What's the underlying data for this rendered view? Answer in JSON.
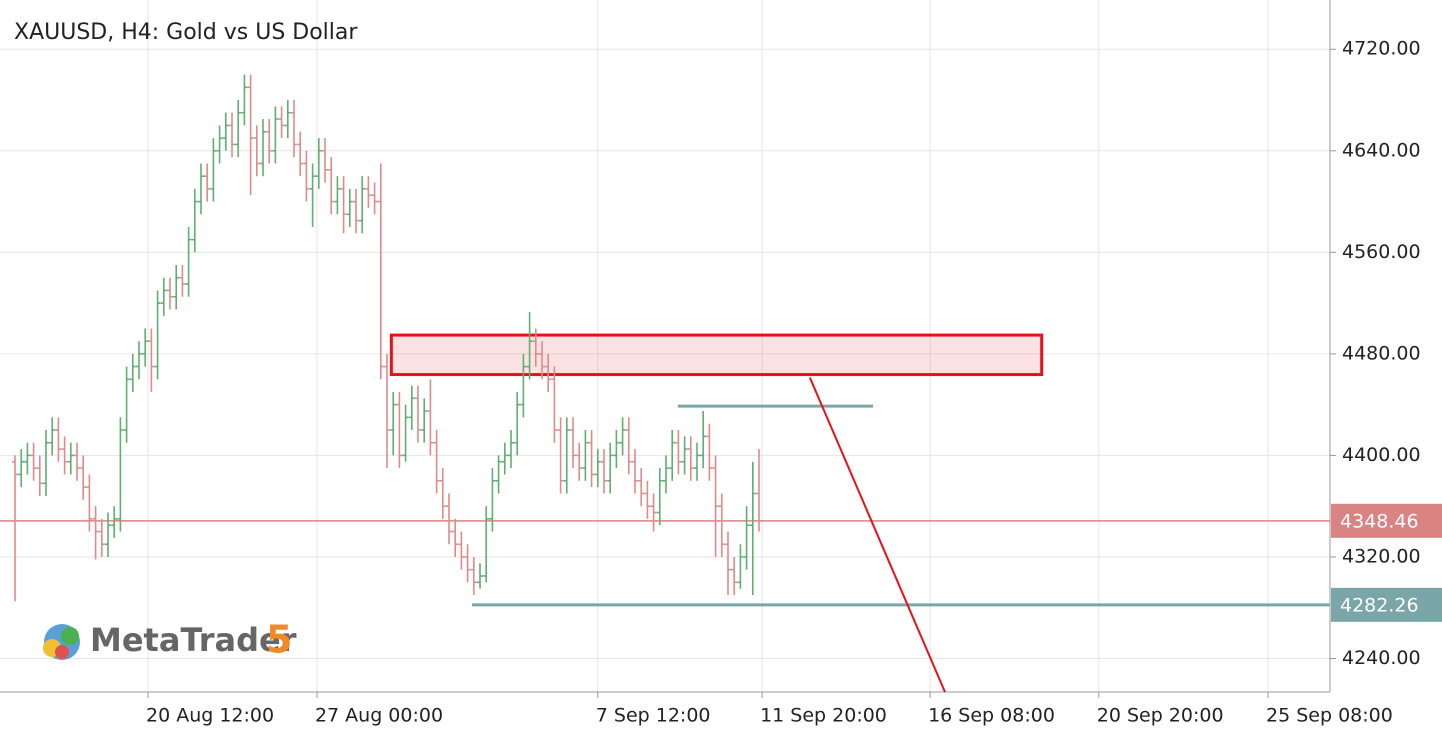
{
  "chart_data": {
    "type": "ohlc",
    "title": "XAUUSD, H4: Gold vs US Dollar",
    "branding": {
      "name": "MetaTrader",
      "version": "5"
    },
    "up_color": "#5fae72",
    "down_color": "#e08a8a",
    "grid": true,
    "xlim": [
      -2.42,
      212.1
    ],
    "ylim": [
      4213.6,
      4758.8
    ],
    "xticks": [
      {
        "value": 21.45,
        "label": "20 Aug 12:00"
      },
      {
        "value": 48.7,
        "label": "27 Aug 00:00"
      },
      {
        "value": 94.0,
        "label": "7 Sep 12:00"
      },
      {
        "value": 120.5,
        "label": "11 Sep 20:00"
      },
      {
        "value": 147.6,
        "label": "16 Sep 08:00"
      },
      {
        "value": 174.8,
        "label": "20 Sep 20:00"
      },
      {
        "value": 202.1,
        "label": "25 Sep 08:00"
      }
    ],
    "yticks": [
      {
        "value": 4240,
        "label": "4240.00"
      },
      {
        "value": 4320,
        "label": "4320.00"
      },
      {
        "value": 4400,
        "label": "4400.00"
      },
      {
        "value": 4480,
        "label": "4480.00"
      },
      {
        "value": 4560,
        "label": "4560.00"
      },
      {
        "value": 4640,
        "label": "4640.00"
      },
      {
        "value": 4720,
        "label": "4720.00"
      }
    ],
    "ohlc": [
      [
        4395,
        4400,
        4285,
        4385
      ],
      [
        4385,
        4405,
        4375,
        4395
      ],
      [
        4395,
        4410,
        4385,
        4400
      ],
      [
        4400,
        4410,
        4380,
        4390
      ],
      [
        4390,
        4400,
        4368,
        4378
      ],
      [
        4378,
        4420,
        4368,
        4410
      ],
      [
        4410,
        4430,
        4400,
        4420
      ],
      [
        4420,
        4430,
        4395,
        4405
      ],
      [
        4405,
        4415,
        4385,
        4395
      ],
      [
        4395,
        4410,
        4385,
        4400
      ],
      [
        4400,
        4410,
        4380,
        4390
      ],
      [
        4390,
        4400,
        4365,
        4375
      ],
      [
        4375,
        4385,
        4340,
        4350
      ],
      [
        4350,
        4360,
        4318,
        4340
      ],
      [
        4340,
        4350,
        4320,
        4330
      ],
      [
        4330,
        4355,
        4320,
        4345
      ],
      [
        4345,
        4360,
        4335,
        4350
      ],
      [
        4350,
        4430,
        4340,
        4420
      ],
      [
        4420,
        4470,
        4410,
        4460
      ],
      [
        4460,
        4480,
        4450,
        4470
      ],
      [
        4470,
        4490,
        4460,
        4480
      ],
      [
        4480,
        4500,
        4470,
        4490
      ],
      [
        4490,
        4500,
        4450,
        4470
      ],
      [
        4470,
        4530,
        4460,
        4520
      ],
      [
        4520,
        4540,
        4510,
        4530
      ],
      [
        4530,
        4540,
        4515,
        4525
      ],
      [
        4525,
        4550,
        4515,
        4540
      ],
      [
        4540,
        4550,
        4525,
        4535
      ],
      [
        4535,
        4580,
        4525,
        4570
      ],
      [
        4570,
        4610,
        4560,
        4600
      ],
      [
        4600,
        4630,
        4590,
        4620
      ],
      [
        4620,
        4630,
        4600,
        4610
      ],
      [
        4610,
        4650,
        4600,
        4640
      ],
      [
        4640,
        4660,
        4630,
        4650
      ],
      [
        4650,
        4670,
        4640,
        4660
      ],
      [
        4660,
        4670,
        4635,
        4645
      ],
      [
        4645,
        4680,
        4635,
        4670
      ],
      [
        4670,
        4700,
        4660,
        4690
      ],
      [
        4690,
        4700,
        4605,
        4650
      ],
      [
        4650,
        4660,
        4620,
        4630
      ],
      [
        4630,
        4665,
        4620,
        4655
      ],
      [
        4655,
        4665,
        4630,
        4640
      ],
      [
        4640,
        4675,
        4630,
        4665
      ],
      [
        4665,
        4675,
        4650,
        4660
      ],
      [
        4660,
        4680,
        4650,
        4670
      ],
      [
        4670,
        4680,
        4635,
        4645
      ],
      [
        4645,
        4655,
        4620,
        4630
      ],
      [
        4630,
        4640,
        4600,
        4610
      ],
      [
        4610,
        4630,
        4580,
        4620
      ],
      [
        4620,
        4650,
        4610,
        4640
      ],
      [
        4640,
        4650,
        4615,
        4625
      ],
      [
        4625,
        4635,
        4590,
        4600
      ],
      [
        4600,
        4620,
        4590,
        4610
      ],
      [
        4610,
        4620,
        4575,
        4590
      ],
      [
        4590,
        4610,
        4580,
        4600
      ],
      [
        4600,
        4610,
        4575,
        4585
      ],
      [
        4585,
        4620,
        4575,
        4610
      ],
      [
        4610,
        4620,
        4595,
        4605
      ],
      [
        4605,
        4615,
        4590,
        4600
      ],
      [
        4600,
        4630,
        4460,
        4470
      ],
      [
        4470,
        4480,
        4390,
        4420
      ],
      [
        4420,
        4450,
        4400,
        4440
      ],
      [
        4440,
        4450,
        4390,
        4400
      ],
      [
        4400,
        4440,
        4395,
        4430
      ],
      [
        4430,
        4455,
        4420,
        4445
      ],
      [
        4445,
        4455,
        4410,
        4420
      ],
      [
        4420,
        4445,
        4410,
        4435
      ],
      [
        4435,
        4460,
        4400,
        4410
      ],
      [
        4410,
        4420,
        4370,
        4380
      ],
      [
        4380,
        4390,
        4350,
        4360
      ],
      [
        4360,
        4370,
        4330,
        4340
      ],
      [
        4340,
        4350,
        4320,
        4330
      ],
      [
        4330,
        4340,
        4310,
        4320
      ],
      [
        4320,
        4330,
        4300,
        4310
      ],
      [
        4310,
        4320,
        4290,
        4300
      ],
      [
        4300,
        4315,
        4295,
        4305
      ],
      [
        4305,
        4360,
        4300,
        4350
      ],
      [
        4350,
        4390,
        4340,
        4380
      ],
      [
        4380,
        4400,
        4370,
        4395
      ],
      [
        4395,
        4410,
        4385,
        4400
      ],
      [
        4400,
        4420,
        4390,
        4410
      ],
      [
        4410,
        4450,
        4400,
        4440
      ],
      [
        4440,
        4480,
        4430,
        4470
      ],
      [
        4470,
        4513,
        4460,
        4490
      ],
      [
        4490,
        4500,
        4470,
        4480
      ],
      [
        4480,
        4490,
        4460,
        4470
      ],
      [
        4470,
        4480,
        4450,
        4460
      ],
      [
        4460,
        4470,
        4410,
        4420
      ],
      [
        4420,
        4430,
        4370,
        4380
      ],
      [
        4380,
        4430,
        4370,
        4420
      ],
      [
        4420,
        4430,
        4390,
        4400
      ],
      [
        4400,
        4410,
        4380,
        4390
      ],
      [
        4390,
        4420,
        4380,
        4410
      ],
      [
        4410,
        4420,
        4375,
        4385
      ],
      [
        4385,
        4405,
        4375,
        4395
      ],
      [
        4395,
        4405,
        4370,
        4380
      ],
      [
        4380,
        4410,
        4370,
        4400
      ],
      [
        4400,
        4420,
        4390,
        4410
      ],
      [
        4410,
        4430,
        4400,
        4420
      ],
      [
        4420,
        4430,
        4385,
        4395
      ],
      [
        4395,
        4405,
        4370,
        4380
      ],
      [
        4380,
        4390,
        4360,
        4370
      ],
      [
        4370,
        4380,
        4350,
        4360
      ],
      [
        4360,
        4370,
        4340,
        4355
      ],
      [
        4355,
        4390,
        4345,
        4380
      ],
      [
        4380,
        4400,
        4370,
        4390
      ],
      [
        4390,
        4420,
        4380,
        4410
      ],
      [
        4410,
        4420,
        4385,
        4395
      ],
      [
        4395,
        4415,
        4385,
        4405
      ],
      [
        4405,
        4415,
        4380,
        4390
      ],
      [
        4390,
        4410,
        4380,
        4400
      ],
      [
        4400,
        4435,
        4390,
        4415
      ],
      [
        4415,
        4425,
        4380,
        4390
      ],
      [
        4390,
        4400,
        4320,
        4360
      ],
      [
        4360,
        4370,
        4320,
        4330
      ],
      [
        4330,
        4340,
        4290,
        4310
      ],
      [
        4310,
        4320,
        4290,
        4300
      ],
      [
        4300,
        4330,
        4295,
        4320
      ],
      [
        4320,
        4360,
        4310,
        4345
      ],
      [
        4345,
        4395,
        4290,
        4370
      ],
      [
        4370,
        4405,
        4340,
        4348.46
      ]
    ],
    "horizontal_lines": [
      {
        "value": 4348.46,
        "color": "#d98383",
        "label_bg": "#d98383"
      },
      {
        "value": 4282.26,
        "color": "#7aa6a8",
        "label_bg": "#7aa6a8",
        "x_start": 73.7
      }
    ],
    "zone": {
      "x": [
        60.7,
        165.6
      ],
      "y": [
        4463.7,
        4494.8
      ],
      "color": "#e8101a"
    },
    "segments": [
      {
        "x": [
          106.9,
          138.4
        ],
        "y": [
          4438.8,
          4438.8
        ],
        "color": "#7aa6a8"
      },
      {
        "x": [
          128.2,
          150.0
        ],
        "y": [
          4461.4,
          4213.6
        ],
        "color": "#e8101a"
      }
    ]
  }
}
